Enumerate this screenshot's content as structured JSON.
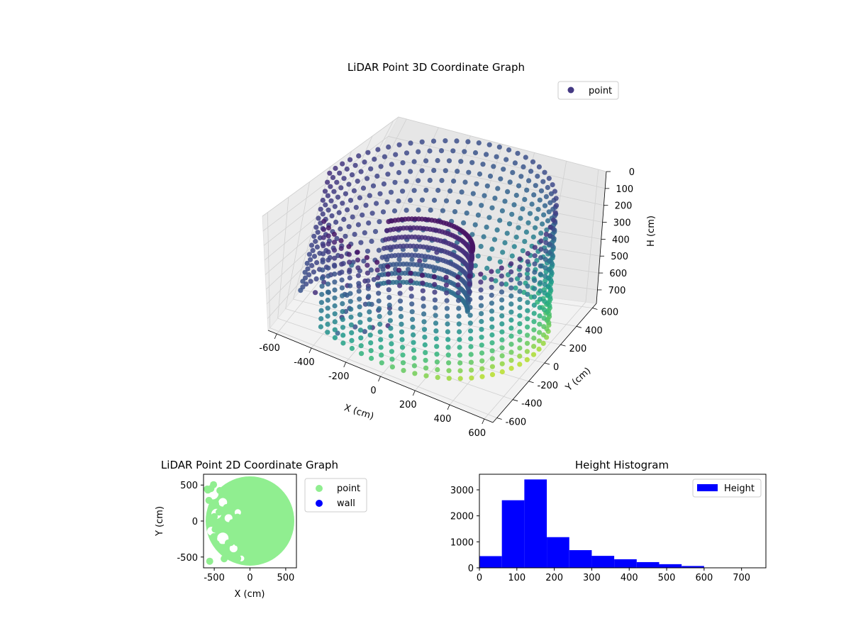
{
  "chart_data": [
    {
      "type": "scatter3d",
      "title": "LiDAR Point 3D Coordinate Graph",
      "xlabel": "X (cm)",
      "ylabel": "Y (cm)",
      "zlabel": "H (cm)",
      "xlim": [
        -650,
        650
      ],
      "ylim": [
        -650,
        650
      ],
      "zlim": [
        780,
        0
      ],
      "xticks": [
        -600,
        -400,
        -200,
        0,
        200,
        400,
        600
      ],
      "yticks": [
        -600,
        -400,
        -200,
        0,
        200,
        400,
        600
      ],
      "zticks": [
        0,
        100,
        200,
        300,
        400,
        500,
        600,
        700
      ],
      "legend": [
        "point"
      ],
      "legend_position": "upper-right",
      "colormap": "viridis",
      "wall_radius": 620,
      "height_range": [
        0,
        700
      ]
    },
    {
      "type": "scatter",
      "title": "LiDAR Point 2D Coordinate Graph",
      "xlabel": "X (cm)",
      "ylabel": "Y (cm)",
      "xlim": [
        -650,
        650
      ],
      "ylim": [
        -650,
        650
      ],
      "xticks": [
        -500,
        0,
        500
      ],
      "yticks": [
        500,
        0,
        -500
      ],
      "series": [
        {
          "name": "point",
          "color": "#90ee90"
        },
        {
          "name": "wall",
          "color": "#0000ff"
        }
      ],
      "legend_position": "outside-right"
    },
    {
      "type": "bar",
      "title": "Height Histogram",
      "xticks": [
        0,
        100,
        200,
        300,
        400,
        500,
        600,
        700
      ],
      "yticks": [
        0,
        1000,
        2000,
        3000
      ],
      "xlim": [
        0,
        765
      ],
      "ylim": [
        0,
        3600
      ],
      "bin_edges": [
        0,
        60,
        120,
        180,
        240,
        300,
        360,
        420,
        480,
        540,
        600,
        660,
        720
      ],
      "values": [
        450,
        2600,
        3400,
        1180,
        680,
        460,
        330,
        220,
        140,
        70,
        10,
        5
      ],
      "color": "#0000ff",
      "legend": [
        "Height"
      ],
      "legend_position": "upper-right"
    }
  ]
}
